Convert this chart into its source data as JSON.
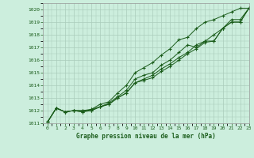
{
  "title": "Graphe pression niveau de la mer (hPa)",
  "xlim": [
    -0.5,
    23
  ],
  "ylim": [
    1011,
    1020.5
  ],
  "yticks": [
    1011,
    1012,
    1013,
    1014,
    1015,
    1016,
    1017,
    1018,
    1019,
    1020
  ],
  "xticks": [
    0,
    1,
    2,
    3,
    4,
    5,
    6,
    7,
    8,
    9,
    10,
    11,
    12,
    13,
    14,
    15,
    16,
    17,
    18,
    19,
    20,
    21,
    22,
    23
  ],
  "background_color": "#cceedd",
  "grid_color": "#aaccbb",
  "line_color": "#1a5c1a",
  "lines": [
    [
      1011.1,
      1012.2,
      1011.9,
      1012.0,
      1012.0,
      1012.0,
      1012.3,
      1012.5,
      1013.0,
      1013.4,
      1014.2,
      1014.4,
      1014.6,
      1015.1,
      1015.5,
      1016.0,
      1016.5,
      1016.9,
      1017.4,
      1017.5,
      1018.5,
      1019.0,
      1019.0,
      1020.1
    ],
    [
      1011.1,
      1012.2,
      1011.9,
      1012.0,
      1011.9,
      1012.0,
      1012.3,
      1012.5,
      1013.0,
      1013.4,
      1014.2,
      1014.5,
      1014.8,
      1015.3,
      1015.7,
      1016.2,
      1016.6,
      1017.2,
      1017.5,
      1017.5,
      1018.5,
      1019.0,
      1019.0,
      1020.1
    ],
    [
      1011.1,
      1012.2,
      1011.9,
      1012.0,
      1012.0,
      1012.1,
      1012.3,
      1012.6,
      1013.1,
      1013.6,
      1014.5,
      1014.8,
      1015.0,
      1015.6,
      1016.0,
      1016.6,
      1017.2,
      1017.0,
      1017.5,
      1018.0,
      1018.5,
      1019.2,
      1019.2,
      1020.1
    ],
    [
      1011.1,
      1012.2,
      1011.9,
      1012.0,
      1011.9,
      1012.1,
      1012.5,
      1012.7,
      1013.4,
      1014.0,
      1015.0,
      1015.4,
      1015.8,
      1016.4,
      1016.9,
      1017.6,
      1017.8,
      1018.5,
      1019.0,
      1019.2,
      1019.5,
      1019.8,
      1020.1,
      1020.1
    ]
  ]
}
